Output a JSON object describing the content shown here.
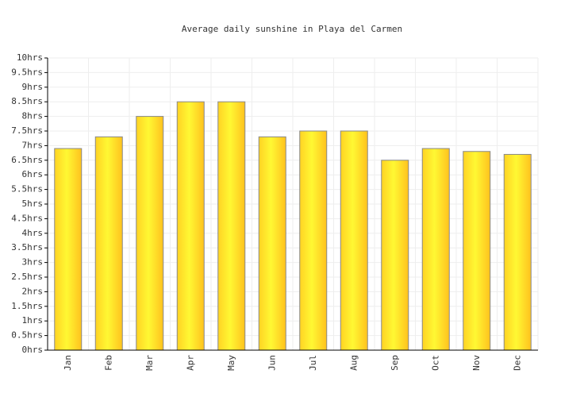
{
  "chart_data": {
    "type": "bar",
    "title": "Average daily sunshine in Playa del Carmen",
    "categories": [
      "Jan",
      "Feb",
      "Mar",
      "Apr",
      "May",
      "Jun",
      "Jul",
      "Aug",
      "Sep",
      "Oct",
      "Nov",
      "Dec"
    ],
    "values": [
      6.9,
      7.3,
      8.0,
      8.5,
      8.5,
      7.3,
      7.5,
      7.5,
      6.5,
      6.9,
      6.8,
      6.7
    ],
    "color": "#ffe92d",
    "ylim": [
      0,
      10
    ],
    "yticks": [
      {
        "value": 0,
        "label": "0hrs"
      },
      {
        "value": 0.5,
        "label": "0.5hrs"
      },
      {
        "value": 1,
        "label": "1hrs"
      },
      {
        "value": 1.5,
        "label": "1.5hrs"
      },
      {
        "value": 2,
        "label": "2hrs"
      },
      {
        "value": 2.5,
        "label": "2.5hrs"
      },
      {
        "value": 3,
        "label": "3hrs"
      },
      {
        "value": 3.5,
        "label": "3.5hrs"
      },
      {
        "value": 4,
        "label": "4hrs"
      },
      {
        "value": 4.5,
        "label": "4.5hrs"
      },
      {
        "value": 5,
        "label": "5hrs"
      },
      {
        "value": 5.5,
        "label": "5.5hrs"
      },
      {
        "value": 6,
        "label": "6hrs"
      },
      {
        "value": 6.5,
        "label": "6.5hrs"
      },
      {
        "value": 7,
        "label": "7hrs"
      },
      {
        "value": 7.5,
        "label": "7.5hrs"
      },
      {
        "value": 8,
        "label": "8hrs"
      },
      {
        "value": 8.5,
        "label": "8.5hrs"
      },
      {
        "value": 9,
        "label": "9hrs"
      },
      {
        "value": 9.5,
        "label": "9.5hrs"
      },
      {
        "value": 10,
        "label": "10hrs"
      }
    ],
    "grid": true
  }
}
